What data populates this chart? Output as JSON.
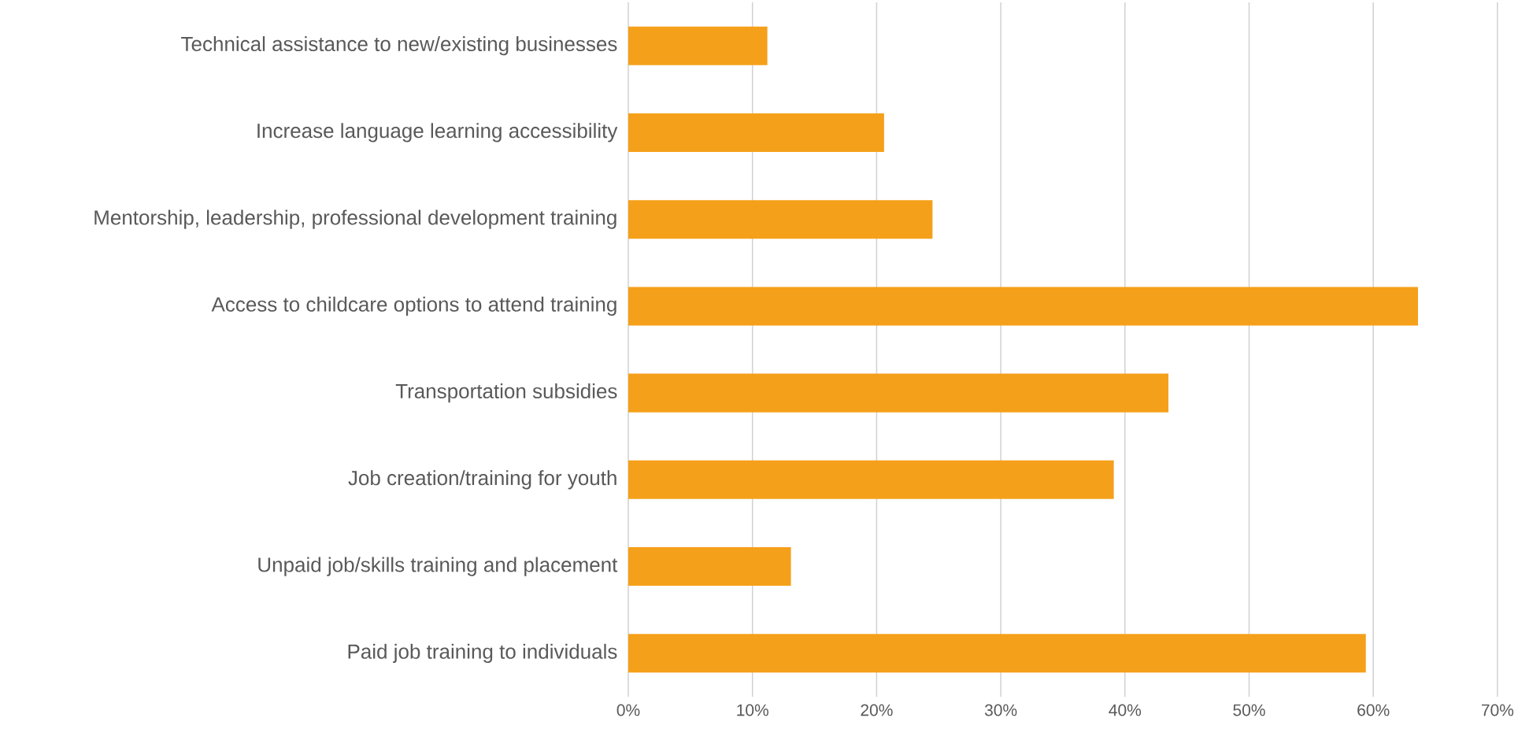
{
  "chart_data": {
    "type": "bar",
    "orientation": "horizontal",
    "categories": [
      "Technical assistance to new/existing businesses",
      "Increase language learning accessibility",
      "Mentorship, leadership, professional development training",
      "Access to childcare options to attend training",
      "Transportation subsidies",
      "Job creation/training for youth",
      "Unpaid job/skills training and placement",
      "Paid job training to individuals"
    ],
    "values": [
      11.2,
      20.6,
      24.5,
      63.6,
      43.5,
      39.1,
      13.1,
      59.4
    ],
    "color": "#f5a01a",
    "xlim": [
      0,
      70
    ],
    "xticks": [
      {
        "value": 0,
        "label": "0%"
      },
      {
        "value": 10,
        "label": "10%"
      },
      {
        "value": 20,
        "label": "20%"
      },
      {
        "value": 30,
        "label": "30%"
      },
      {
        "value": 40,
        "label": "40%"
      },
      {
        "value": 50,
        "label": "50%"
      },
      {
        "value": 60,
        "label": "60%"
      },
      {
        "value": 70,
        "label": "70%"
      }
    ],
    "grid": "x"
  }
}
